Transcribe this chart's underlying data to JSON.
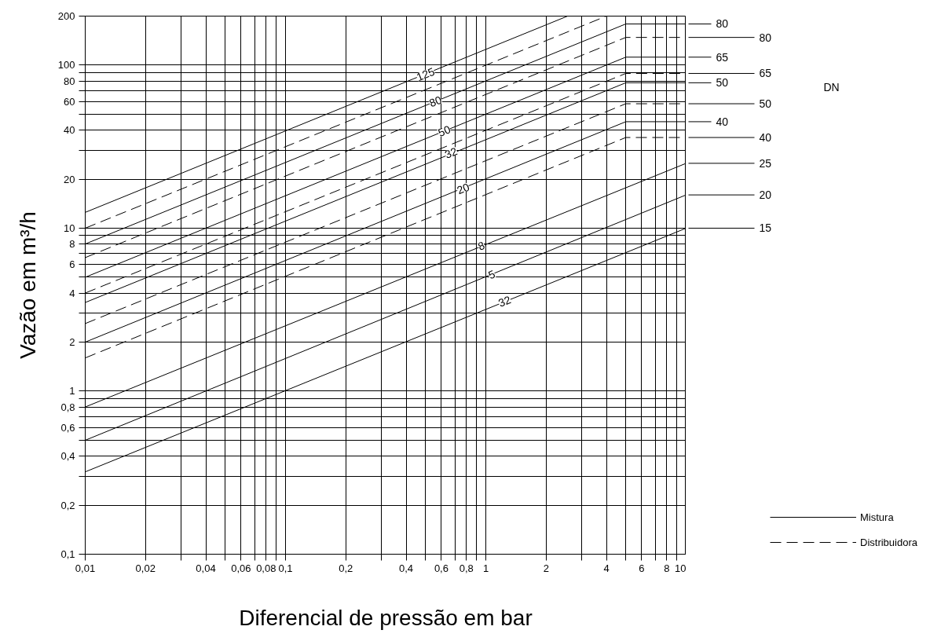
{
  "chart_data": {
    "type": "line",
    "xlabel": "Diferencial de pressão em bar",
    "ylabel": "Vazão em m³/h",
    "log": "xy",
    "grid": true,
    "legend": "bottom right",
    "marker": "none",
    "xlim": [
      0.01,
      10
    ],
    "ylim": [
      0.1,
      200
    ],
    "xticks": [
      {
        "value": 0.01,
        "label": "0,01"
      },
      {
        "value": 0.02,
        "label": "0,02"
      },
      {
        "value": 0.03,
        "label": null
      },
      {
        "value": 0.04,
        "label": "0,04"
      },
      {
        "value": 0.05,
        "label": null
      },
      {
        "value": 0.06,
        "label": "0,06"
      },
      {
        "value": 0.07,
        "label": null
      },
      {
        "value": 0.08,
        "label": "0,08"
      },
      {
        "value": 0.09,
        "label": null
      },
      {
        "value": 0.1,
        "label": "0,1"
      },
      {
        "value": 0.2,
        "label": "0,2"
      },
      {
        "value": 0.3,
        "label": null
      },
      {
        "value": 0.4,
        "label": "0,4"
      },
      {
        "value": 0.5,
        "label": null
      },
      {
        "value": 0.6,
        "label": "0,6"
      },
      {
        "value": 0.7,
        "label": null
      },
      {
        "value": 0.8,
        "label": "0,8"
      },
      {
        "value": 0.9,
        "label": null
      },
      1,
      2,
      {
        "value": 3,
        "label": null
      },
      4,
      {
        "value": 5,
        "label": null
      },
      6,
      {
        "value": 7,
        "label": null
      },
      8,
      {
        "value": 9,
        "label": null
      },
      10
    ],
    "yticks": [
      {
        "value": 0.1,
        "label": "0,1"
      },
      {
        "value": 0.2,
        "label": "0,2"
      },
      {
        "value": 0.3,
        "label": null
      },
      {
        "value": 0.4,
        "label": "0,4"
      },
      {
        "value": 0.5,
        "label": null
      },
      {
        "value": 0.6,
        "label": "0,6"
      },
      {
        "value": 0.7,
        "label": null
      },
      {
        "value": 0.8,
        "label": "0,8"
      },
      {
        "value": 0.9,
        "label": null
      },
      1,
      2,
      {
        "value": 3,
        "label": null
      },
      4,
      {
        "value": 5,
        "label": null
      },
      6,
      {
        "value": 7,
        "label": null
      },
      8,
      {
        "value": 9,
        "label": null
      },
      10,
      20,
      {
        "value": 30,
        "label": null
      },
      40,
      {
        "value": 50,
        "label": null
      },
      60,
      {
        "value": 70,
        "label": null
      },
      80,
      {
        "value": 90,
        "label": null
      },
      100,
      200
    ],
    "series": [
      {
        "name": "Mistura",
        "color": "#000000",
        "line_style": "solid",
        "x": [
          0.01,
          2.56
        ],
        "values": [
          12.5,
          200
        ]
      },
      {
        "name": "Distribuidora",
        "color": "#000000",
        "line_style": "dashed",
        "x": [
          0.01,
          4
        ],
        "values": [
          10,
          200
        ]
      },
      {
        "color": "#000000",
        "line_style": "solid",
        "x": [
          0.01,
          5,
          10
        ],
        "values": [
          8,
          179,
          179
        ]
      },
      {
        "color": "#000000",
        "line_style": "dashed",
        "x": [
          0.01,
          5,
          10
        ],
        "values": [
          6.6,
          148,
          148
        ]
      },
      {
        "color": "#000000",
        "line_style": "solid",
        "x": [
          0.01,
          5,
          10
        ],
        "values": [
          5,
          112,
          112
        ]
      },
      {
        "color": "#000000",
        "line_style": "dashed",
        "x": [
          0.01,
          5,
          10
        ],
        "values": [
          4,
          89,
          89
        ]
      },
      {
        "color": "#000000",
        "line_style": "solid",
        "x": [
          0.01,
          5,
          10
        ],
        "values": [
          3.5,
          78,
          78
        ]
      },
      {
        "color": "#000000",
        "line_style": "dashed",
        "x": [
          0.01,
          5,
          10
        ],
        "values": [
          2.6,
          58,
          58
        ]
      },
      {
        "color": "#000000",
        "line_style": "solid",
        "x": [
          0.01,
          5,
          10
        ],
        "values": [
          2,
          45,
          45
        ]
      },
      {
        "color": "#000000",
        "line_style": "dashed",
        "x": [
          0.01,
          5,
          10
        ],
        "values": [
          1.6,
          36,
          36
        ]
      },
      {
        "color": "#000000",
        "line_style": "solid",
        "x": [
          0.01,
          10
        ],
        "values": [
          0.8,
          25
        ]
      },
      {
        "color": "#000000",
        "line_style": "solid",
        "x": [
          0.01,
          10
        ],
        "values": [
          0.5,
          16
        ]
      },
      {
        "color": "#000000",
        "line_style": "solid",
        "x": [
          0.01,
          10
        ],
        "values": [
          0.32,
          10
        ]
      }
    ],
    "annotations": [
      {
        "text": "125",
        "x": 0.5,
        "y": 88
      },
      {
        "text": "80",
        "x": 0.56,
        "y": 60
      },
      {
        "text": "50",
        "x": 0.62,
        "y": 39.5
      },
      {
        "text": "32",
        "x": 0.67,
        "y": 29
      },
      {
        "text": "20",
        "x": 0.77,
        "y": 17.5
      },
      {
        "text": "8",
        "x": 0.95,
        "y": 7.8
      },
      {
        "text": "5",
        "x": 1.07,
        "y": 5.2
      },
      {
        "text": "32",
        "x": 1.24,
        "y": 3.56
      },
      {
        "text": "80",
        "x": 10,
        "y": 179
      },
      {
        "text": "80",
        "x": 10,
        "y": 148
      },
      {
        "text": "65",
        "x": 10,
        "y": 112
      },
      {
        "text": "65",
        "x": 10,
        "y": 89
      },
      {
        "text": "50",
        "x": 10,
        "y": 78
      },
      {
        "text": "50",
        "x": 10,
        "y": 58
      },
      {
        "text": "40",
        "x": 10,
        "y": 45
      },
      {
        "text": "40",
        "x": 10,
        "y": 36
      },
      {
        "text": "25",
        "x": 10,
        "y": 25
      },
      {
        "text": "20",
        "x": 10,
        "y": 16
      },
      {
        "text": "15",
        "x": 10,
        "y": 10
      },
      "DN"
    ]
  }
}
